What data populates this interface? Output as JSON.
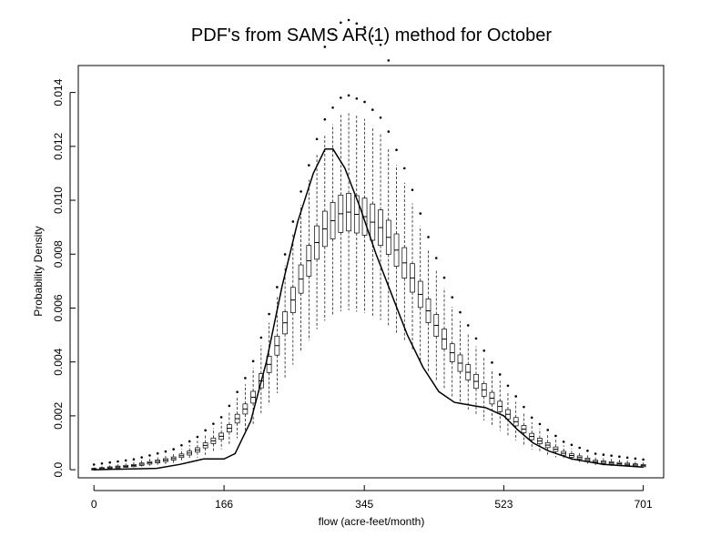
{
  "chart_data": {
    "type": "boxplot",
    "title": "PDF's from SAMS AR(1) method for October",
    "xlabel": "flow (acre-feet/month)",
    "ylabel": "Probability Density",
    "xlim": [
      -20,
      727
    ],
    "ylim": [
      -0.0003,
      0.015
    ],
    "x_ticks": [
      0,
      166,
      345,
      523,
      701
    ],
    "x_tick_labels": [
      "0",
      "166",
      "345",
      "523",
      "701"
    ],
    "y_ticks": [
      0.0,
      0.002,
      0.004,
      0.006,
      0.008,
      0.01,
      0.012,
      0.014
    ],
    "y_tick_labels": [
      "0.0",
      "0.002",
      "0.004",
      "0.006",
      "0.008",
      "0.010",
      "0.012",
      "0.014"
    ],
    "box_x_range": [
      0,
      701
    ],
    "box_count": 70,
    "box_medians": [
      [
        0,
        2e-05
      ],
      [
        50,
        0.00015
      ],
      [
        100,
        0.0004
      ],
      [
        130,
        0.0007
      ],
      [
        166,
        0.0013
      ],
      [
        200,
        0.0025
      ],
      [
        230,
        0.0043
      ],
      [
        260,
        0.0068
      ],
      [
        290,
        0.0088
      ],
      [
        310,
        0.0094
      ],
      [
        320,
        0.0096
      ],
      [
        345,
        0.0094
      ],
      [
        370,
        0.0089
      ],
      [
        400,
        0.0075
      ],
      [
        430,
        0.0057
      ],
      [
        460,
        0.0042
      ],
      [
        490,
        0.0032
      ],
      [
        523,
        0.0022
      ],
      [
        560,
        0.0012
      ],
      [
        600,
        0.0006
      ],
      [
        640,
        0.0003
      ],
      [
        701,
        0.00015
      ]
    ],
    "series": [
      {
        "name": "",
        "type": "line",
        "points": [
          [
            0,
            0.0
          ],
          [
            80,
            5e-05
          ],
          [
            110,
            0.0002
          ],
          [
            140,
            0.0004
          ],
          [
            166,
            0.0004
          ],
          [
            180,
            0.0006
          ],
          [
            200,
            0.0018
          ],
          [
            220,
            0.004
          ],
          [
            240,
            0.0068
          ],
          [
            260,
            0.0092
          ],
          [
            280,
            0.011
          ],
          [
            295,
            0.0119
          ],
          [
            305,
            0.0119
          ],
          [
            320,
            0.0112
          ],
          [
            340,
            0.0097
          ],
          [
            360,
            0.008
          ],
          [
            380,
            0.0065
          ],
          [
            400,
            0.005
          ],
          [
            420,
            0.0038
          ],
          [
            440,
            0.0029
          ],
          [
            460,
            0.0025
          ],
          [
            480,
            0.0024
          ],
          [
            500,
            0.0023
          ],
          [
            523,
            0.002
          ],
          [
            540,
            0.0015
          ],
          [
            560,
            0.001
          ],
          [
            580,
            0.0007
          ],
          [
            610,
            0.0004
          ],
          [
            650,
            0.0002
          ],
          [
            701,
            0.0001
          ]
        ]
      }
    ]
  }
}
